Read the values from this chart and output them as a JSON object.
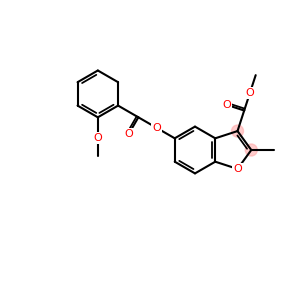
{
  "bg": "#ffffff",
  "bond_color": "#000000",
  "O_color": "#ff0000",
  "highlight_color": "#ffaaaa",
  "bw": 1.5,
  "bl": 0.78,
  "fs": 8.0,
  "figsize": [
    3.0,
    3.0
  ],
  "dpi": 100,
  "xlim": [
    0,
    10
  ],
  "ylim": [
    1.0,
    9.0
  ]
}
